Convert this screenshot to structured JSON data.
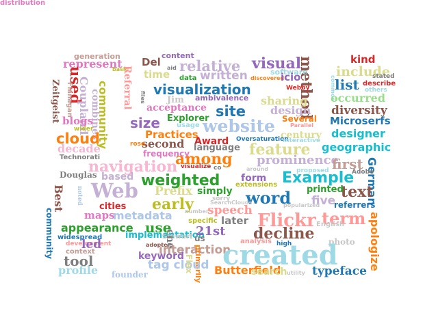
{
  "palette": {
    "pink": "#f7b6d2",
    "purple": "#c5b0d5",
    "olive": "#bcbd22",
    "olive_light": "#dbdb8d",
    "brown": "#8c564b",
    "brown_light": "#c49c94",
    "red": "#d62728",
    "salmon": "#ff9896",
    "blue": "#1f77b4",
    "blue_light": "#aec7e8",
    "orange": "#ff7f0e",
    "orange_light": "#ffbb78",
    "green": "#2ca02c",
    "green_light": "#98df8a",
    "cyan": "#17becf",
    "cyan_light": "#9edae5",
    "gray": "#7f7f7f",
    "gray_light": "#c7c7c7",
    "magenta": "#e377c2",
    "violet": "#9467bd"
  },
  "words": [
    {
      "text": "generation",
      "color": "brown_light"
    },
    {
      "text": "content",
      "color": "violet"
    },
    {
      "text": "kind",
      "color": "red"
    },
    {
      "text": "represent",
      "color": "magenta"
    },
    {
      "text": "Del",
      "color": "brown"
    },
    {
      "text": "relative",
      "color": "purple"
    },
    {
      "text": "visual",
      "color": "violet"
    },
    {
      "text": "method",
      "color": "brown"
    },
    {
      "text": "include",
      "color": "olive_light"
    },
    {
      "text": "used",
      "color": "red"
    },
    {
      "text": "aid",
      "color": "gray"
    },
    {
      "text": "basic",
      "color": "olive"
    },
    {
      "text": "Referral",
      "color": "salmon"
    },
    {
      "text": "time",
      "color": "olive_light"
    },
    {
      "text": "data",
      "color": "green"
    },
    {
      "text": "written",
      "color": "purple"
    },
    {
      "text": "software",
      "color": "cyan_light"
    },
    {
      "text": "stated",
      "color": "gray"
    },
    {
      "text": "Zeitgeist",
      "color": "brown"
    },
    {
      "text": "Flanagan",
      "color": "brown_light"
    },
    {
      "text": "Coupland",
      "color": "purple"
    },
    {
      "text": "discovered",
      "color": "orange"
    },
    {
      "text": "icio",
      "color": "violet"
    },
    {
      "text": "list",
      "color": "blue"
    },
    {
      "text": "describe",
      "color": "red"
    },
    {
      "text": "Webby",
      "color": "red"
    },
    {
      "text": "others",
      "color": "cyan_light"
    },
    {
      "text": "common",
      "color": "cyan_light"
    },
    {
      "text": "visualization",
      "color": "blue"
    },
    {
      "text": "files",
      "color": "gray"
    },
    {
      "text": "occurred",
      "color": "green_light"
    },
    {
      "text": "community",
      "color": "olive"
    },
    {
      "text": "Jim",
      "color": "gray_light"
    },
    {
      "text": "ambivalence",
      "color": "violet"
    },
    {
      "text": "sharing",
      "color": "olive_light"
    },
    {
      "text": "combines",
      "color": "purple"
    },
    {
      "text": "acceptance",
      "color": "magenta"
    },
    {
      "text": "site",
      "color": "blue"
    },
    {
      "text": "design",
      "color": "purple"
    },
    {
      "text": "diversity",
      "color": "brown"
    },
    {
      "text": "Explorer",
      "color": "green"
    },
    {
      "text": "Several",
      "color": "orange"
    },
    {
      "text": "Microserfs",
      "color": "blue"
    },
    {
      "text": "blogs",
      "color": "magenta"
    },
    {
      "text": "size",
      "color": "violet"
    },
    {
      "text": "usage",
      "color": "cyan_light"
    },
    {
      "text": "website",
      "color": "blue_light"
    },
    {
      "text": "Parallel",
      "color": "salmon"
    },
    {
      "text": "wider",
      "color": "olive"
    },
    {
      "text": "Practices",
      "color": "orange"
    },
    {
      "text": "century",
      "color": "olive_light"
    },
    {
      "text": "designer",
      "color": "cyan"
    },
    {
      "text": "cloud",
      "color": "orange"
    },
    {
      "text": "Award",
      "color": "red"
    },
    {
      "text": "Oversaturation",
      "color": "blue"
    },
    {
      "text": "interactive",
      "color": "cyan_light"
    },
    {
      "text": "second",
      "color": "brown"
    },
    {
      "text": "language",
      "color": "gray"
    },
    {
      "text": "feature",
      "color": "olive_light"
    },
    {
      "text": "geographic",
      "color": "cyan"
    },
    {
      "text": "decade",
      "color": "pink"
    },
    {
      "text": "rose",
      "color": "orange"
    },
    {
      "text": "frequency",
      "color": "magenta"
    },
    {
      "text": "Technorati",
      "color": "gray"
    },
    {
      "text": "among",
      "color": "orange"
    },
    {
      "text": "navigation",
      "color": "pink"
    },
    {
      "text": "visualize",
      "color": "red"
    },
    {
      "text": "co",
      "color": "gray"
    },
    {
      "text": "prominence",
      "color": "purple"
    },
    {
      "text": "first",
      "color": "brown_light"
    },
    {
      "text": "German",
      "color": "blue"
    },
    {
      "text": "around",
      "color": "gray_light"
    },
    {
      "text": "proposed",
      "color": "cyan_light"
    },
    {
      "text": "Douglas",
      "color": "gray"
    },
    {
      "text": "based",
      "color": "purple"
    },
    {
      "text": "weighted",
      "color": "green"
    },
    {
      "text": "form",
      "color": "violet"
    },
    {
      "text": "Example",
      "color": "cyan"
    },
    {
      "text": "Adobe",
      "color": "gray"
    },
    {
      "text": "Web",
      "color": "purple"
    },
    {
      "text": "extensions",
      "color": "olive"
    },
    {
      "text": "text",
      "color": "brown"
    },
    {
      "text": "printed",
      "color": "green"
    },
    {
      "text": "Best",
      "color": "brown"
    },
    {
      "text": "noted",
      "color": "blue_light"
    },
    {
      "text": "Prefix",
      "color": "olive_light"
    },
    {
      "text": "simply",
      "color": "green"
    },
    {
      "text": "sorry",
      "color": "gray_light"
    },
    {
      "text": "word",
      "color": "blue"
    },
    {
      "text": "five",
      "color": "purple"
    },
    {
      "text": "referrers",
      "color": "blue"
    },
    {
      "text": "cities",
      "color": "red"
    },
    {
      "text": "early",
      "color": "olive"
    },
    {
      "text": "SearchClouds",
      "color": "gray_light"
    },
    {
      "text": "popularized",
      "color": "gray_light"
    },
    {
      "text": "maps",
      "color": "magenta"
    },
    {
      "text": "metadata",
      "color": "blue_light"
    },
    {
      "text": "number",
      "color": "gray_light"
    },
    {
      "text": "speech",
      "color": "salmon"
    },
    {
      "text": "community",
      "color": "blue"
    },
    {
      "text": "specific",
      "color": "olive"
    },
    {
      "text": "later",
      "color": "gray"
    },
    {
      "text": "Flickr",
      "color": "salmon"
    },
    {
      "text": "term",
      "color": "salmon"
    },
    {
      "text": "apologize",
      "color": "orange"
    },
    {
      "text": "appearance",
      "color": "green"
    },
    {
      "text": "use",
      "color": "green"
    },
    {
      "text": "English",
      "color": "gray_light"
    },
    {
      "text": "widespread",
      "color": "blue"
    },
    {
      "text": "implementation",
      "color": "cyan"
    },
    {
      "text": "Stewart",
      "color": "gray_light"
    },
    {
      "text": "21st",
      "color": "violet"
    },
    {
      "text": "decline",
      "color": "brown"
    },
    {
      "text": "development",
      "color": "salmon"
    },
    {
      "text": "led",
      "color": "violet"
    },
    {
      "text": "adopters",
      "color": "brown"
    },
    {
      "text": "cne",
      "color": "gray"
    },
    {
      "text": "analysis",
      "color": "salmon"
    },
    {
      "text": "high",
      "color": "blue"
    },
    {
      "text": "photo",
      "color": "gray_light"
    },
    {
      "text": "context",
      "color": "brown_light"
    },
    {
      "text": "interaction",
      "color": "brown_light"
    },
    {
      "text": "us",
      "color": "gray"
    },
    {
      "text": "tool",
      "color": "gray"
    },
    {
      "text": "keyword",
      "color": "violet"
    },
    {
      "text": "primarily",
      "color": "orange"
    },
    {
      "text": "created",
      "color": "cyan_light"
    },
    {
      "text": "tag cloud",
      "color": "blue_light"
    },
    {
      "text": "Flex",
      "color": "olive_light"
    },
    {
      "text": "profile",
      "color": "cyan_light"
    },
    {
      "text": "founder",
      "color": "blue_light"
    },
    {
      "text": "Butterfield",
      "color": "orange"
    },
    {
      "text": "search",
      "color": "olive_light"
    },
    {
      "text": "utility",
      "color": "gray_light"
    },
    {
      "text": "typeface",
      "color": "blue"
    },
    {
      "text": "distribution",
      "color": "magenta"
    }
  ]
}
